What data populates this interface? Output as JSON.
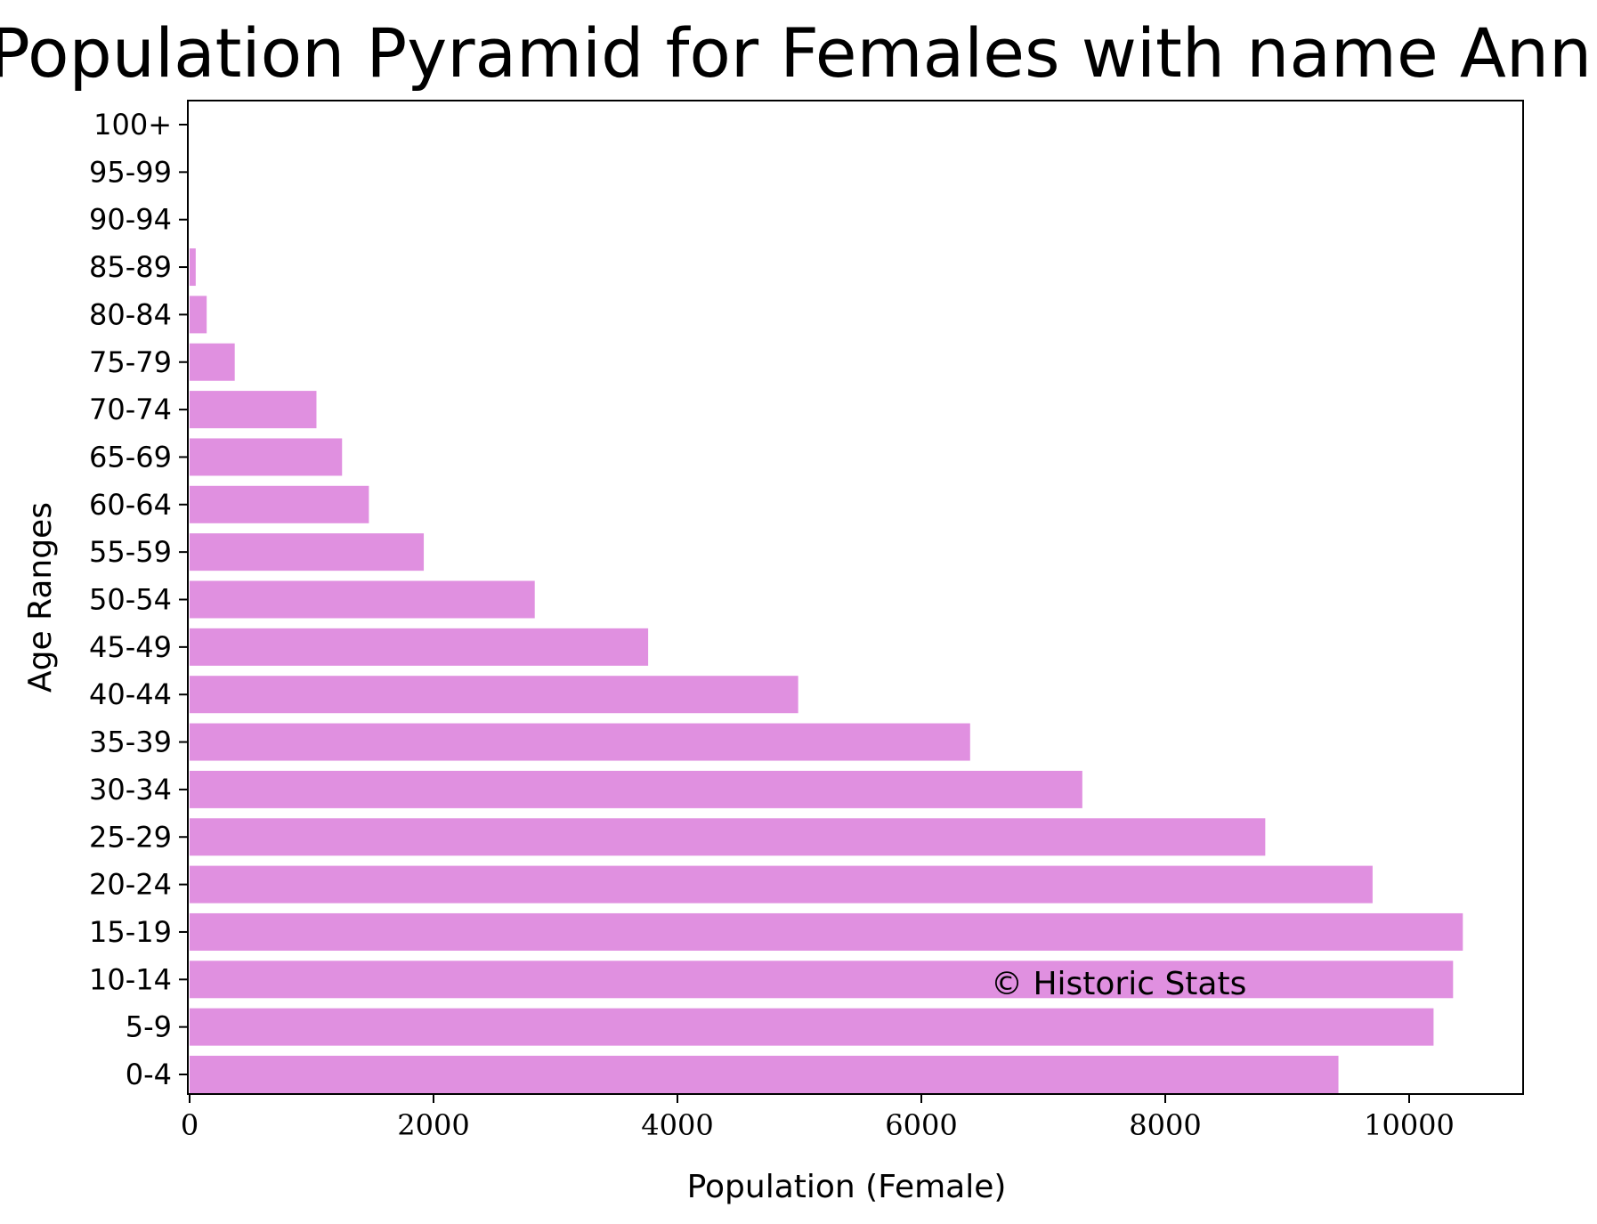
{
  "chart_data": {
    "type": "bar",
    "orientation": "horizontal",
    "title": "Population Pyramid for Females with name Annie",
    "xlabel": "Population (Female)",
    "ylabel": "Age Ranges",
    "categories": [
      "0-4",
      "5-9",
      "10-14",
      "15-19",
      "20-24",
      "25-29",
      "30-34",
      "35-39",
      "40-44",
      "45-49",
      "50-54",
      "55-59",
      "60-64",
      "65-69",
      "70-74",
      "75-79",
      "80-84",
      "85-89",
      "90-94",
      "95-99",
      "100+"
    ],
    "values": [
      9420,
      10200,
      10360,
      10440,
      9700,
      8820,
      7320,
      6400,
      4990,
      3760,
      2830,
      1920,
      1470,
      1250,
      1040,
      370,
      140,
      50,
      0,
      0,
      0
    ],
    "xlim": [
      0,
      11000
    ],
    "xticks": [
      "0",
      "2000",
      "4000",
      "6000",
      "8000",
      "10000"
    ],
    "bar_color": "#e090e0",
    "grid": false,
    "annotation": "© Historic Stats"
  }
}
